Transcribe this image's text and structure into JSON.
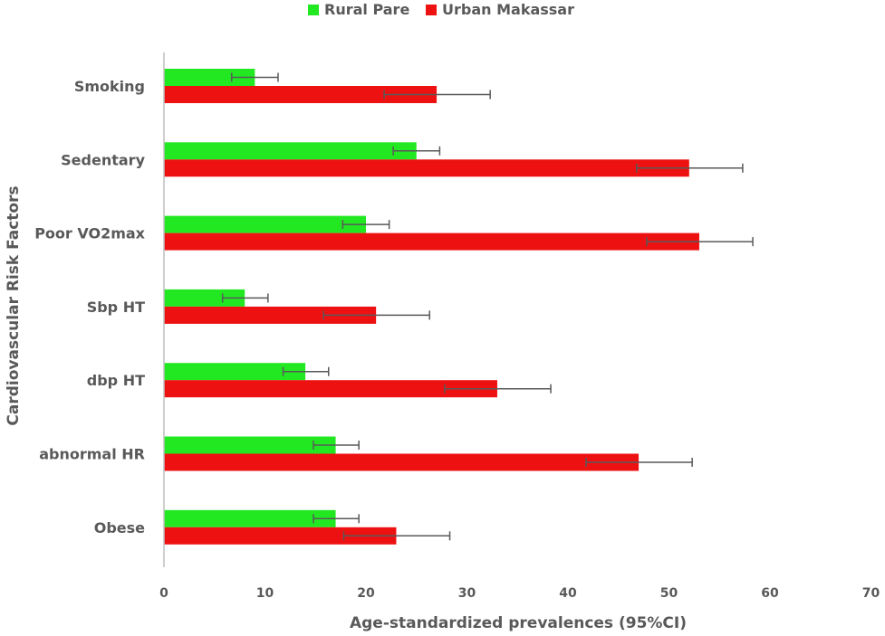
{
  "chart_data": {
    "type": "bar",
    "orientation": "horizontal",
    "title": "",
    "xlabel": "Age-standardized prevalences (95%CI)",
    "ylabel": "Cardiovascular Risk Factors",
    "xlim": [
      0,
      70
    ],
    "xticks": [
      "0",
      "10",
      "20",
      "30",
      "40",
      "50",
      "60",
      "70"
    ],
    "categories": [
      "Smoking",
      "Sedentary",
      "Poor VO2max",
      "Sbp HT",
      "dbp HT",
      "abnormal HR",
      "Obese"
    ],
    "series": [
      {
        "name": "Rural Pare",
        "color": "#22e822",
        "values": [
          9,
          25,
          20,
          8,
          14,
          17,
          17
        ],
        "ci_low": [
          6.7,
          22.7,
          17.7,
          5.8,
          11.8,
          14.8,
          14.8
        ],
        "ci_high": [
          11.3,
          27.3,
          22.3,
          10.3,
          16.3,
          19.3,
          19.3
        ]
      },
      {
        "name": "Urban Makassar",
        "color": "#ee1111",
        "values": [
          27,
          52,
          53,
          21,
          33,
          47,
          23
        ],
        "ci_low": [
          21.8,
          46.8,
          47.8,
          15.8,
          27.8,
          41.8,
          17.8
        ],
        "ci_high": [
          32.3,
          57.3,
          58.3,
          26.3,
          38.3,
          52.3,
          28.3
        ]
      }
    ],
    "grid": false,
    "legend_position": "top"
  }
}
